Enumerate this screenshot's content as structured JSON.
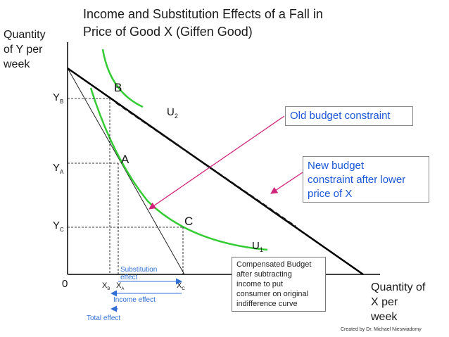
{
  "title_line1": "Income and Substitution Effects of a Fall in",
  "title_line2": "Price of Good X (Giffen Good)",
  "y_axis_label": [
    "Quantity",
    "of Y per",
    "week"
  ],
  "x_axis_label": [
    "Quantity of",
    "X per",
    "week"
  ],
  "origin": "0",
  "points": {
    "A": "A",
    "B": "B",
    "C": "C"
  },
  "curves": {
    "u1_base": "U",
    "u1_sub": "1",
    "u2_base": "U",
    "u2_sub": "2"
  },
  "y_ticks": [
    {
      "base": "Y",
      "sub": "B"
    },
    {
      "base": "Y",
      "sub": "A"
    },
    {
      "base": "Y",
      "sub": "C"
    }
  ],
  "x_ticks": [
    {
      "base": "X",
      "sub": "B"
    },
    {
      "base": "X",
      "sub": "A"
    },
    {
      "base": "X",
      "sub": "C"
    }
  ],
  "effects": {
    "substitution": [
      "Substitution",
      "effect"
    ],
    "income": "Income effect",
    "total": "Total effect"
  },
  "callouts": {
    "old_budget": "Old budget constraint",
    "new_budget": [
      "New budget",
      "constraint after lower",
      "price of X"
    ]
  },
  "compensated_note": [
    "Compensated Budget",
    "after subtracting",
    "income  to  put",
    "consumer on original",
    "indifference curve"
  ],
  "credit": "Created by Dr. Michael Nieswiadomy",
  "colors": {
    "curve": "#33cc33",
    "arrow_pink": "#d1237a",
    "arrow_blue": "#2f6fd6",
    "callout_text": "#1a57d6"
  }
}
